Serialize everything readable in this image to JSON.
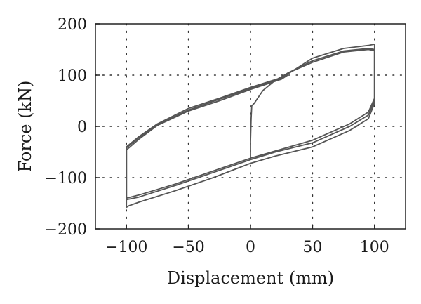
{
  "chart_data": {
    "type": "line",
    "title": "",
    "xlabel": "Displacement (mm)",
    "ylabel": "Force (kN)",
    "xlim": [
      -125,
      125
    ],
    "ylim": [
      -200,
      200
    ],
    "xticks": [
      -100,
      -50,
      0,
      50,
      100
    ],
    "yticks": [
      -200,
      -100,
      0,
      100,
      200
    ],
    "xtick_labels": [
      "−100",
      "−50",
      "0",
      "50",
      "100"
    ],
    "ytick_labels": [
      "−200",
      "−100",
      "0",
      "100",
      "200"
    ],
    "grid": true,
    "grid_style": "dotted",
    "line_color": "#555555",
    "series": [
      {
        "values": [
          [
            0,
            -65
          ],
          [
            0,
            -30
          ],
          [
            0.5,
            15
          ],
          [
            1,
            40
          ],
          [
            3,
            45
          ],
          [
            10,
            70
          ],
          [
            20,
            90
          ],
          [
            30,
            104
          ],
          [
            50,
            125
          ],
          [
            75,
            145
          ],
          [
            95,
            150
          ],
          [
            100,
            148
          ],
          [
            100,
            50
          ],
          [
            95,
            22
          ],
          [
            80,
            0
          ],
          [
            50,
            -32
          ],
          [
            20,
            -50
          ],
          [
            0,
            -65
          ],
          [
            -30,
            -90
          ],
          [
            -60,
            -115
          ],
          [
            -90,
            -138
          ],
          [
            -100,
            -143
          ],
          [
            -100,
            -40
          ],
          [
            -90,
            -20
          ],
          [
            -75,
            5
          ],
          [
            -50,
            35
          ],
          [
            -25,
            55
          ],
          [
            0,
            76
          ],
          [
            25,
            95
          ],
          [
            30,
            104
          ]
        ]
      },
      {
        "values": [
          [
            30,
            104
          ],
          [
            50,
            128
          ],
          [
            75,
            147
          ],
          [
            95,
            152
          ],
          [
            100,
            150
          ],
          [
            100,
            55
          ],
          [
            95,
            28
          ],
          [
            80,
            5
          ],
          [
            50,
            -27
          ],
          [
            20,
            -48
          ],
          [
            0,
            -62
          ],
          [
            -30,
            -87
          ],
          [
            -60,
            -112
          ],
          [
            -90,
            -134
          ],
          [
            -100,
            -140
          ],
          [
            -100,
            -42
          ],
          [
            -90,
            -22
          ],
          [
            -75,
            3
          ],
          [
            -50,
            32
          ],
          [
            -25,
            53
          ],
          [
            0,
            74
          ],
          [
            25,
            93
          ],
          [
            30,
            102
          ]
        ]
      },
      {
        "values": [
          [
            30,
            102
          ],
          [
            50,
            133
          ],
          [
            75,
            152
          ],
          [
            95,
            158
          ],
          [
            99,
            160
          ],
          [
            100,
            160
          ],
          [
            100,
            45
          ],
          [
            95,
            15
          ],
          [
            80,
            -8
          ],
          [
            50,
            -40
          ],
          [
            20,
            -58
          ],
          [
            0,
            -72
          ],
          [
            -30,
            -100
          ],
          [
            -60,
            -125
          ],
          [
            -90,
            -148
          ],
          [
            -98,
            -155
          ],
          [
            -100,
            -158
          ],
          [
            -100,
            -46
          ],
          [
            -90,
            -25
          ],
          [
            -75,
            2
          ],
          [
            -50,
            30
          ],
          [
            -25,
            50
          ],
          [
            0,
            72
          ],
          [
            25,
            92
          ],
          [
            30,
            100
          ]
        ]
      }
    ]
  }
}
